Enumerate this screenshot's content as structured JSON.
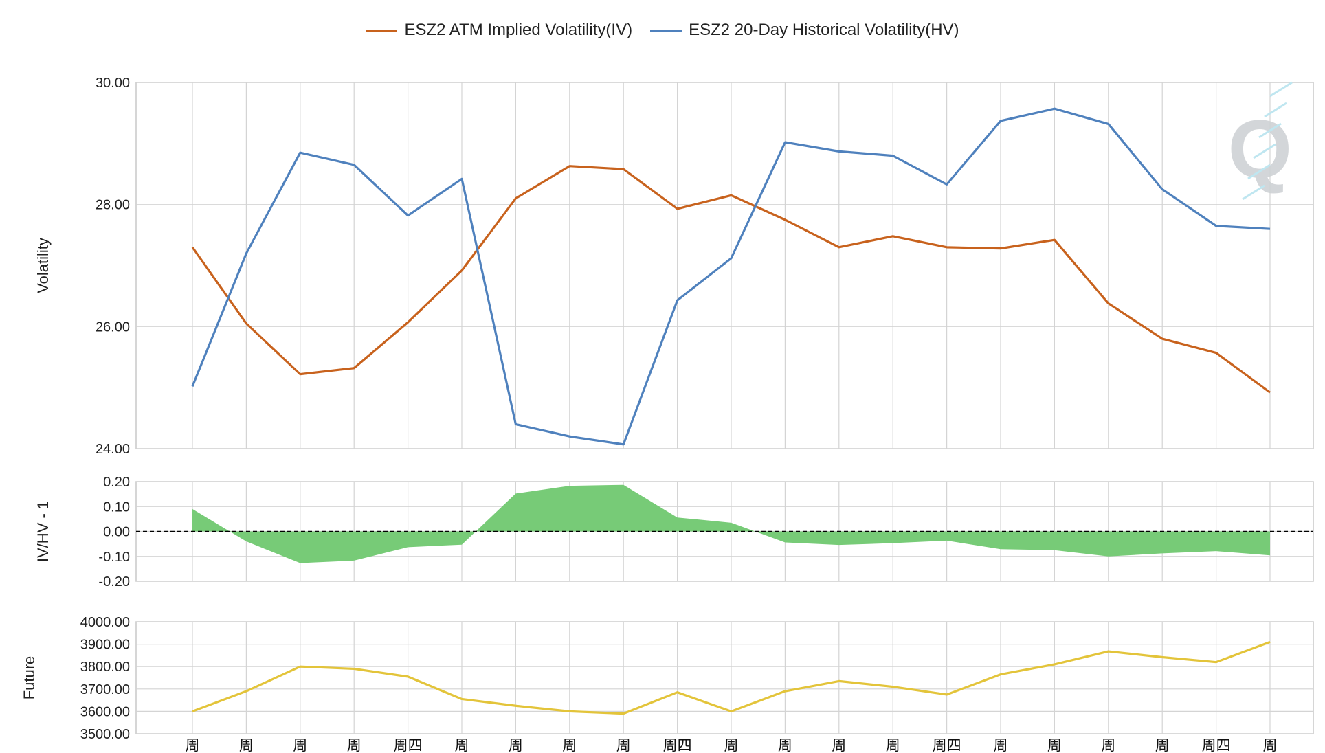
{
  "chart_data": {
    "type": "line",
    "categories": [
      "周",
      "周",
      "周",
      "周",
      "周四",
      "周",
      "周",
      "周",
      "周",
      "周四",
      "周",
      "周",
      "周",
      "周",
      "周四",
      "周",
      "周",
      "周",
      "周",
      "周四",
      "周"
    ],
    "legend": [
      {
        "name": "ESZ2 ATM Implied Volatility(IV)",
        "color": "#c8621d"
      },
      {
        "name": "ESZ2 20-Day Historical Volatility(HV)",
        "color": "#4f81bd"
      }
    ],
    "panels": [
      {
        "id": "volatility",
        "ylabel": "Volatility",
        "ylim": [
          24,
          30
        ],
        "yticks": [
          "30.00",
          "28.00",
          "26.00",
          "24.00"
        ],
        "yticks_values": [
          30,
          28,
          26,
          24
        ],
        "series": [
          {
            "name": "ESZ2 ATM Implied Volatility(IV)",
            "color": "#c8621d",
            "values": [
              27.3,
              26.05,
              25.22,
              25.32,
              26.07,
              26.92,
              28.1,
              28.63,
              28.58,
              27.93,
              28.15,
              27.75,
              27.3,
              27.48,
              27.3,
              27.28,
              27.42,
              26.38,
              25.8,
              25.57,
              24.92
            ]
          },
          {
            "name": "ESZ2 20-Day Historical Volatility(HV)",
            "color": "#4f81bd",
            "values": [
              25.02,
              27.2,
              28.85,
              28.65,
              27.82,
              28.42,
              24.4,
              24.2,
              24.07,
              26.43,
              27.12,
              29.02,
              28.87,
              28.8,
              28.33,
              29.37,
              29.57,
              29.32,
              28.25,
              27.65,
              27.6
            ]
          }
        ]
      },
      {
        "id": "iv-hv-ratio",
        "type": "area",
        "ylabel": "IV/HV - 1",
        "ylim": [
          -0.2,
          0.2
        ],
        "yticks": [
          "0.20",
          "0.10",
          "0.00",
          "-0.10",
          "-0.20"
        ],
        "yticks_values": [
          0.2,
          0.1,
          0,
          -0.1,
          -0.2
        ],
        "series": [
          {
            "color": "#77cb77",
            "values": [
              0.09,
              -0.04,
              -0.127,
              -0.117,
              -0.063,
              -0.053,
              0.152,
              0.183,
              0.187,
              0.056,
              0.035,
              -0.044,
              -0.054,
              -0.047,
              -0.037,
              -0.071,
              -0.075,
              -0.1,
              -0.088,
              -0.079,
              -0.096
            ]
          }
        ]
      },
      {
        "id": "future",
        "ylabel": "Future",
        "ylim": [
          3500,
          4000
        ],
        "yticks": [
          "4000.00",
          "3900.00",
          "3800.00",
          "3700.00",
          "3600.00",
          "3500.00"
        ],
        "yticks_values": [
          4000,
          3900,
          3800,
          3700,
          3600,
          3500
        ],
        "series": [
          {
            "color": "#e3c43a",
            "values": [
              3600,
              3690,
              3800,
              3790,
              3755,
              3655,
              3625,
              3600,
              3590,
              3685,
              3600,
              3690,
              3735,
              3710,
              3675,
              3765,
              3810,
              3868,
              3842,
              3820,
              3910
            ]
          }
        ]
      }
    ],
    "grid": true,
    "legend_position": "top-center",
    "watermark": "Q"
  }
}
